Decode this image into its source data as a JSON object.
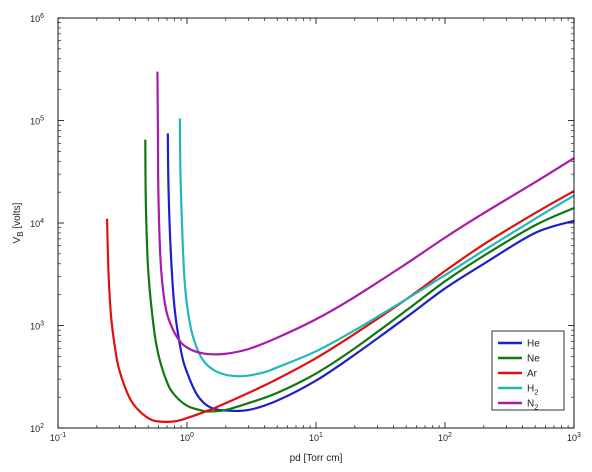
{
  "chart_data": {
    "type": "line",
    "title": "",
    "xlabel": "pd [Torr cm]",
    "ylabel": "V_B [volts]",
    "xscale": "log",
    "yscale": "log",
    "xlim": [
      0.1,
      1000
    ],
    "ylim": [
      100,
      1000000
    ],
    "x_ticks": [
      {
        "value": 0.1,
        "base": "10",
        "exp": "-1"
      },
      {
        "value": 1,
        "base": "10",
        "exp": "0"
      },
      {
        "value": 10,
        "base": "10",
        "exp": "1"
      },
      {
        "value": 100,
        "base": "10",
        "exp": "2"
      },
      {
        "value": 1000,
        "base": "10",
        "exp": "3"
      }
    ],
    "y_ticks": [
      {
        "value": 100,
        "base": "10",
        "exp": "2"
      },
      {
        "value": 1000,
        "base": "10",
        "exp": "3"
      },
      {
        "value": 10000,
        "base": "10",
        "exp": "4"
      },
      {
        "value": 100000,
        "base": "10",
        "exp": "5"
      },
      {
        "value": 1000000,
        "base": "10",
        "exp": "6"
      }
    ],
    "grid": false,
    "legend_position": "bottom-right",
    "series": [
      {
        "name": "He",
        "label_main": "He",
        "label_sub": "",
        "color": "#1f1fcc",
        "x": [
          0.71,
          0.72,
          0.75,
          0.8,
          0.9,
          1.0,
          1.2,
          1.5,
          2.0,
          3,
          5,
          10,
          20,
          50,
          100,
          200,
          500,
          1000
        ],
        "y": [
          75000,
          20000,
          5000,
          1500,
          560,
          350,
          210,
          160,
          148,
          150,
          185,
          290,
          520,
          1200,
          2300,
          4000,
          8000,
          10500
        ]
      },
      {
        "name": "Ne",
        "label_main": "Ne",
        "label_sub": "",
        "color": "#117711",
        "x": [
          0.475,
          0.48,
          0.5,
          0.55,
          0.6,
          0.7,
          0.8,
          1.0,
          1.3,
          1.5,
          2,
          3,
          5,
          10,
          20,
          50,
          100,
          200,
          500,
          1000
        ],
        "y": [
          65000,
          15000,
          3500,
          1000,
          520,
          280,
          210,
          165,
          148,
          145,
          150,
          175,
          220,
          340,
          600,
          1400,
          2700,
          4800,
          9500,
          14000
        ]
      },
      {
        "name": "Ar",
        "label_main": "Ar",
        "label_sub": "",
        "color": "#e01010",
        "x": [
          0.24,
          0.245,
          0.25,
          0.26,
          0.28,
          0.3,
          0.35,
          0.4,
          0.5,
          0.6,
          0.8,
          1.0,
          1.5,
          2,
          3,
          5,
          10,
          20,
          50,
          100,
          200,
          500,
          1000
        ],
        "y": [
          11000,
          4000,
          2200,
          1100,
          550,
          360,
          210,
          160,
          125,
          116,
          116,
          125,
          150,
          175,
          220,
          300,
          480,
          830,
          1800,
          3400,
          6200,
          12500,
          20500
        ]
      },
      {
        "name": "H2",
        "label_main": "H",
        "label_sub": "2",
        "color": "#20b8b8",
        "x": [
          0.88,
          0.89,
          0.92,
          0.95,
          1.0,
          1.1,
          1.3,
          1.6,
          2.0,
          2.5,
          3,
          4,
          5,
          10,
          20,
          50,
          100,
          200,
          500,
          1000
        ],
        "y": [
          105000,
          30000,
          8000,
          3200,
          1600,
          820,
          480,
          370,
          330,
          320,
          325,
          350,
          390,
          560,
          900,
          1800,
          3100,
          5400,
          11000,
          18500
        ]
      },
      {
        "name": "N2",
        "label_main": "N",
        "label_sub": "2",
        "color": "#aa1aaa",
        "x": [
          0.59,
          0.595,
          0.6,
          0.62,
          0.65,
          0.7,
          0.8,
          0.9,
          1.0,
          1.2,
          1.5,
          2,
          3,
          5,
          10,
          20,
          50,
          100,
          200,
          500,
          1000
        ],
        "y": [
          300000,
          80000,
          20000,
          5000,
          2300,
          1300,
          850,
          680,
          610,
          550,
          525,
          530,
          590,
          760,
          1150,
          1900,
          4000,
          7200,
          12500,
          25000,
          43000
        ]
      }
    ]
  }
}
